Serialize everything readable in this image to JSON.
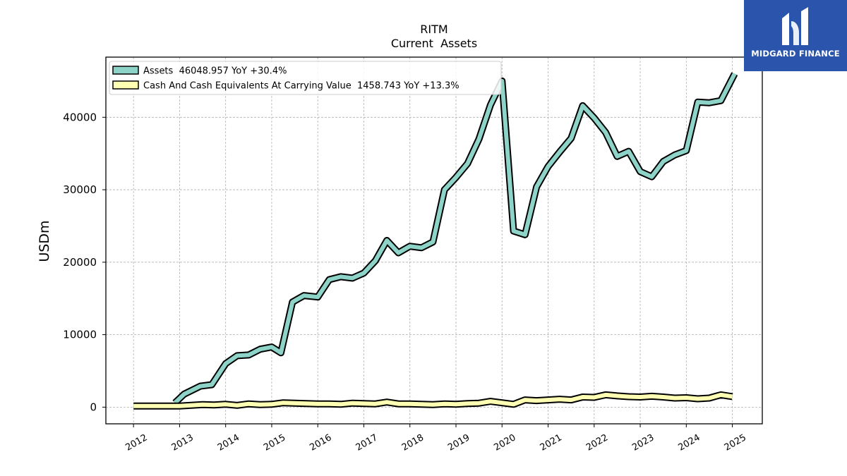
{
  "chart_data": {
    "type": "line",
    "title": "RITM",
    "subtitle": "Current  Assets",
    "ylabel": "USDm",
    "xlabel": "",
    "ylim": [
      -2300,
      48300
    ],
    "xlim": [
      2011.4,
      2025.65
    ],
    "yticks": [
      0,
      10000,
      20000,
      30000,
      40000
    ],
    "xticks": [
      "2012",
      "2013",
      "2014",
      "2015",
      "2016",
      "2017",
      "2018",
      "2019",
      "2020",
      "2021",
      "2022",
      "2023",
      "2024",
      "2025"
    ],
    "grid": true,
    "legend_position": "top-left",
    "series": [
      {
        "name": "Assets",
        "legend_label": "Assets  46048.957 YoY +30.4%",
        "color": "#8dd3c7",
        "x": [
          2012.9,
          2013.1,
          2013.45,
          2013.7,
          2014.0,
          2014.25,
          2014.5,
          2014.75,
          2015.0,
          2015.2,
          2015.45,
          2015.7,
          2016.0,
          2016.25,
          2016.5,
          2016.75,
          2017.0,
          2017.25,
          2017.5,
          2017.75,
          2018.0,
          2018.25,
          2018.5,
          2018.75,
          2019.0,
          2019.25,
          2019.5,
          2019.75,
          2020.0,
          2020.25,
          2020.5,
          2020.75,
          2021.0,
          2021.25,
          2021.5,
          2021.75,
          2022.0,
          2022.25,
          2022.5,
          2022.75,
          2023.0,
          2023.25,
          2023.5,
          2023.75,
          2024.0,
          2024.25,
          2024.5,
          2024.75,
          2025.05
        ],
        "values": [
          600,
          1800,
          2900,
          3100,
          6000,
          7100,
          7200,
          8000,
          8300,
          7500,
          14500,
          15400,
          15200,
          17600,
          18000,
          17800,
          18500,
          20200,
          23000,
          21300,
          22200,
          22000,
          22800,
          30000,
          31700,
          33600,
          37000,
          41700,
          45000,
          24300,
          23800,
          30400,
          33200,
          35200,
          37100,
          41600,
          39900,
          37900,
          34600,
          35300,
          32500,
          31800,
          33900,
          34800,
          35400,
          42100,
          42000,
          42300,
          46000
        ]
      },
      {
        "name": "Cash And Cash Equivalents At Carrying Value",
        "legend_label": "Cash And Cash Equivalents At Carrying Value  1458.743 YoY +13.3%",
        "color": "#ffffb3",
        "x": [
          2012.0,
          2012.25,
          2012.5,
          2012.75,
          2013.0,
          2013.25,
          2013.5,
          2013.75,
          2014.0,
          2014.25,
          2014.5,
          2014.75,
          2015.0,
          2015.25,
          2015.5,
          2015.75,
          2016.0,
          2016.25,
          2016.5,
          2016.75,
          2017.0,
          2017.25,
          2017.5,
          2017.75,
          2018.0,
          2018.25,
          2018.5,
          2018.75,
          2019.0,
          2019.25,
          2019.5,
          2019.75,
          2020.0,
          2020.25,
          2020.5,
          2020.75,
          2021.0,
          2021.25,
          2021.5,
          2021.75,
          2022.0,
          2022.25,
          2022.5,
          2022.75,
          2023.0,
          2023.25,
          2023.5,
          2023.75,
          2024.0,
          2024.25,
          2024.5,
          2024.75,
          2025.0
        ],
        "values": [
          150,
          150,
          150,
          150,
          150,
          250,
          350,
          300,
          400,
          250,
          450,
          350,
          400,
          600,
          550,
          500,
          450,
          450,
          400,
          550,
          500,
          450,
          700,
          450,
          450,
          400,
          350,
          450,
          400,
          500,
          550,
          800,
          600,
          400,
          1000,
          900,
          1000,
          1100,
          1000,
          1400,
          1350,
          1700,
          1550,
          1450,
          1400,
          1500,
          1400,
          1250,
          1300,
          1150,
          1250,
          1700,
          1459
        ]
      }
    ]
  },
  "logo": {
    "name": "MIDGARD FINANCE"
  }
}
